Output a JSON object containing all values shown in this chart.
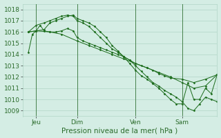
{
  "bg_color": "#d4ede4",
  "grid_color": "#a8cfc0",
  "line_color": "#1a6b1a",
  "xlabel": "Pression niveau de la mer( hPa )",
  "xlabel_fontsize": 7.5,
  "tick_label_color": "#2a6b2a",
  "tick_fontsize": 6.5,
  "ylim": [
    1008.5,
    1018.5
  ],
  "yticks": [
    1009,
    1010,
    1011,
    1012,
    1013,
    1014,
    1015,
    1016,
    1017,
    1018
  ],
  "xlim": [
    0,
    100
  ],
  "xtick_positions": [
    7,
    28,
    58,
    82
  ],
  "xtick_labels": [
    "Jeu",
    "Dim",
    "Ven",
    "Sam"
  ],
  "vline_positions": [
    7,
    28,
    58,
    82
  ],
  "s1_x": [
    3,
    5,
    7,
    9,
    11,
    14,
    17,
    20,
    23,
    26,
    28,
    31,
    34,
    37,
    40,
    43,
    46,
    49,
    52,
    55,
    58,
    61,
    64,
    67,
    70,
    73,
    76,
    82,
    88,
    94,
    100
  ],
  "s1_y": [
    1014.2,
    1015.8,
    1016.1,
    1016.6,
    1016.1,
    1016.0,
    1016.0,
    1016.1,
    1016.3,
    1016.1,
    1015.5,
    1015.2,
    1015.0,
    1014.8,
    1014.6,
    1014.4,
    1014.2,
    1014.0,
    1013.8,
    1013.5,
    1013.2,
    1013.0,
    1012.8,
    1012.6,
    1012.3,
    1012.1,
    1011.9,
    1011.8,
    1011.5,
    1011.8,
    1012.2
  ],
  "s2_x": [
    3,
    7,
    14,
    20,
    28,
    34,
    40,
    46,
    52,
    58,
    64,
    70,
    76,
    82,
    88,
    94,
    100
  ],
  "s2_y": [
    1016.0,
    1016.1,
    1016.0,
    1015.8,
    1015.2,
    1014.8,
    1014.4,
    1014.0,
    1013.6,
    1013.2,
    1012.8,
    1012.4,
    1012.0,
    1011.5,
    1011.0,
    1011.2,
    1012.2
  ],
  "s3_x": [
    3,
    7,
    11,
    14,
    17,
    20,
    23,
    26,
    28,
    31,
    34,
    37,
    40,
    43,
    46,
    49,
    52,
    55,
    58,
    61,
    64,
    67,
    70,
    73,
    76,
    79,
    82,
    85,
    88,
    91,
    94,
    97,
    100
  ],
  "s3_y": [
    1016.0,
    1016.6,
    1016.8,
    1017.0,
    1017.2,
    1017.4,
    1017.5,
    1017.4,
    1017.0,
    1016.8,
    1016.5,
    1016.0,
    1015.5,
    1015.0,
    1014.5,
    1014.2,
    1013.8,
    1013.5,
    1013.0,
    1012.5,
    1012.0,
    1011.5,
    1011.2,
    1010.8,
    1010.5,
    1010.2,
    1009.8,
    1009.2,
    1009.0,
    1009.6,
    1010.2,
    1010.0,
    1009.8
  ],
  "s4_x": [
    3,
    7,
    11,
    14,
    17,
    20,
    23,
    26,
    28,
    31,
    34,
    37,
    40,
    43,
    46,
    49,
    52,
    55,
    58,
    61,
    64,
    67,
    70,
    73,
    76,
    79,
    82,
    85,
    88,
    91,
    94,
    97,
    100
  ],
  "s4_y": [
    1016.0,
    1016.1,
    1016.2,
    1016.8,
    1017.0,
    1017.2,
    1017.4,
    1017.5,
    1017.2,
    1017.0,
    1016.8,
    1016.5,
    1016.0,
    1015.5,
    1014.8,
    1014.3,
    1013.8,
    1013.2,
    1012.6,
    1012.1,
    1011.8,
    1011.4,
    1011.0,
    1010.5,
    1010.0,
    1009.6,
    1009.6,
    1011.5,
    1010.0,
    1010.0,
    1011.0,
    1010.5,
    1012.2
  ]
}
